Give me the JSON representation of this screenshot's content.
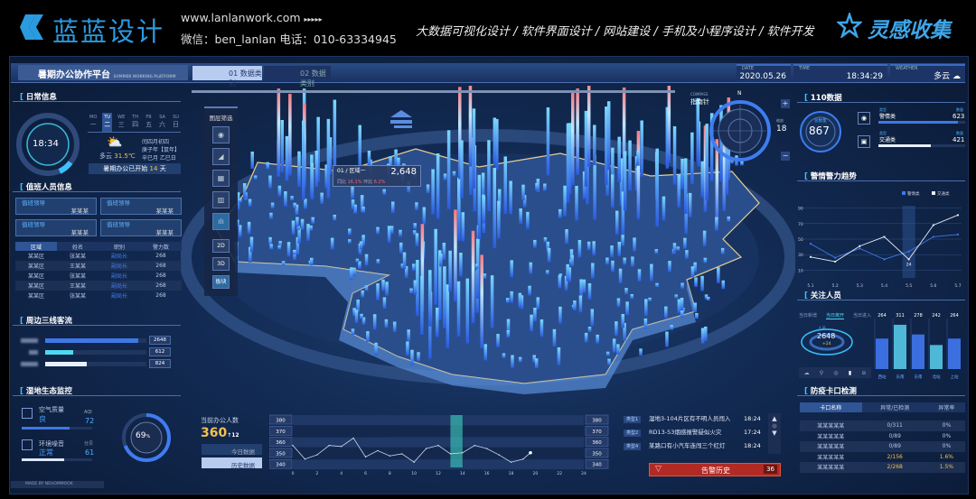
{
  "header": {
    "brand": "蓝蓝设计",
    "site": "www.lanlanwork.com",
    "arrows": "▸▸▸▸▸",
    "contact": "微信：ben_lanlan    电话：010-63334945",
    "services": "大数据可视化设计 / 软件界面设计 / 网站建设 / 手机及小程序设计 / 软件开发",
    "inspiration": "灵感收集"
  },
  "topbar": {
    "title": "暑期办公协作平台",
    "subtitle": "SUMMER WORKING PLATFORM",
    "tabs": [
      {
        "label": "01 数据类别",
        "active": true
      },
      {
        "label": "02 数据类别",
        "active": false
      }
    ],
    "date_label": "DATE",
    "date": "2020.05.26",
    "time_label": "TIME",
    "time": "18:34:29",
    "weather_label": "WEATHER",
    "weather": "多云"
  },
  "daily": {
    "title": "日常信息",
    "clock": "18:34",
    "days_en": [
      "MO",
      "TU",
      "WE",
      "TH",
      "FR",
      "SA",
      "SU"
    ],
    "days_cn": [
      "一",
      "二",
      "三",
      "四",
      "五",
      "六",
      "日"
    ],
    "selected_day": 1,
    "weather": "多云",
    "temp": "31.5℃",
    "lunar": [
      "闰四月初四",
      "庚子年【鼠年】",
      "辛巳月 乙巳日"
    ],
    "banner_prefix": "暑期办公已开始",
    "banner_days": "14",
    "banner_suffix": "天"
  },
  "duty": {
    "title": "值班人员信息",
    "cards": [
      {
        "role": "值班领导",
        "name": "某某某"
      },
      {
        "role": "值班领导",
        "name": "某某某"
      },
      {
        "role": "值班领导",
        "name": "某某某"
      },
      {
        "role": "值班领导",
        "name": "某某某"
      }
    ],
    "columns": [
      "区域",
      "姓名",
      "职别",
      "警力数"
    ],
    "rows": [
      [
        "某某区",
        "张某某",
        "副局长",
        "268"
      ],
      [
        "某某区",
        "王某某",
        "副局长",
        "268"
      ],
      [
        "某某区",
        "张某某",
        "副局长",
        "268"
      ],
      [
        "某某区",
        "王某某",
        "副局长",
        "268"
      ],
      [
        "某某区",
        "张某某",
        "副局长",
        "268"
      ]
    ]
  },
  "flow": {
    "title": "周边三线客流",
    "items": [
      {
        "value": "2648",
        "pct": 0.92,
        "color": "#3f78e6"
      },
      {
        "value": "612",
        "pct": 0.28,
        "color": "#4fd8f0"
      },
      {
        "value": "824",
        "pct": 0.41,
        "color": "#e8f0ff"
      }
    ]
  },
  "eco": {
    "title": "湿地生态监控",
    "air_label": "空气质量",
    "air_status": "良",
    "air_unit": "AQI",
    "air_value": "72",
    "air_pct": 0.68,
    "noise_label": "环境噪音",
    "noise_status": "正常",
    "noise_unit": "分贝",
    "noise_value": "61",
    "noise_pct": 0.6,
    "gauge": "69",
    "gauge_unit": "%",
    "gauge_pct": 0.69
  },
  "footer": {
    "credit": "MADE BY NEHOMMOOK"
  },
  "layers": {
    "title": "图层筛选",
    "icons": [
      "camera-icon",
      "signal-icon",
      "grid-icon",
      "building-icon",
      "chart-icon"
    ],
    "modes": [
      "2D",
      "3D",
      "板块"
    ]
  },
  "tooltip": {
    "region": "01 / 区域一",
    "value": "2,648",
    "yoy_label": "同比",
    "yoy": "16.1%",
    "mom_label": "环比",
    "mom": "6.2%"
  },
  "compass": {
    "label_en": "COMPASS",
    "label": "指南针",
    "north": "N",
    "zoom_label": "缩放",
    "zoom": "18",
    "plus": "+",
    "minus": "−"
  },
  "office": {
    "title": "当前办公人数",
    "value": "360",
    "delta": "↑12",
    "today": "今日数据",
    "history": "历史数据"
  },
  "events": {
    "items": [
      {
        "type": "类型1",
        "text": "湿地3-104片区有不明人员闯入",
        "time": "18:24"
      },
      {
        "type": "类型2",
        "text": "RD13-53烟感报警疑似火灾",
        "time": "17:24"
      },
      {
        "type": "类型4",
        "text": "某路口有小汽车连闯三个红灯",
        "time": "18:24"
      }
    ],
    "alarm_label": "告警历史",
    "alarm_count": "36"
  },
  "police110": {
    "title": "110数据",
    "total_label": "总数量",
    "total": "867",
    "items": [
      {
        "type_label": "类型",
        "name": "警情类",
        "count_label": "数量",
        "count": "623",
        "pct": 0.92
      },
      {
        "type_label": "类型",
        "name": "交通类",
        "count_label": "数量",
        "count": "421",
        "pct": 0.6
      }
    ]
  },
  "focus": {
    "title": "关注人员",
    "tabs": [
      "当日新增",
      "当日离开",
      "当日进入"
    ],
    "active_tab": 1,
    "gauge_label": "人员",
    "gauge_value": "2648",
    "gauge_delta": "+24"
  },
  "checkpoint": {
    "title": "防疫卡口检测",
    "columns": [
      "卡口名称",
      "异常/已检测",
      "异常率"
    ],
    "rows": [
      [
        "某某某某某",
        "0/311",
        "0%"
      ],
      [
        "某某某某某",
        "0/89",
        "0%"
      ],
      [
        "某某某某某",
        "0/89",
        "0%"
      ],
      [
        "某某某某某",
        "2/156",
        "1.6%"
      ],
      [
        "某某某某某",
        "2/268",
        "1.5%"
      ]
    ]
  },
  "chart_data": [
    {
      "type": "line",
      "title": "警情警力趋势",
      "categories": [
        "5.1",
        "5.2",
        "5.3",
        "5.4",
        "5.5",
        "5.6",
        "5.7"
      ],
      "ylim": [
        0,
        100
      ],
      "yticks": [
        "90",
        "70",
        "50",
        "30",
        "10"
      ],
      "legend": "top-right",
      "grid": true,
      "series": [
        {
          "name": "警情类",
          "color": "#3f78e6",
          "values": [
            44,
            26,
            38,
            24,
            34,
            53,
            56
          ]
        },
        {
          "name": "交通类",
          "color": "#e8eef8",
          "values": [
            27,
            21,
            41,
            53,
            24,
            68,
            81
          ]
        }
      ],
      "annotation": "24"
    },
    {
      "type": "bar",
      "title": "关注人员",
      "categories": [
        "西站",
        "东南",
        "东南",
        "北站",
        "上站"
      ],
      "values": [
        264,
        311,
        278,
        242,
        264
      ],
      "ylim": [
        160,
        320
      ],
      "colors": [
        "#3b6fe0",
        "#4fb8d8",
        "#3b6fe0",
        "#4fb8d8",
        "#3b6fe0"
      ]
    },
    {
      "type": "line",
      "title": "当前办公人数",
      "x": [
        0,
        1,
        2,
        3,
        4,
        5,
        6,
        7,
        8,
        9,
        10,
        11,
        12,
        13,
        14,
        15,
        16,
        17,
        18,
        19,
        19.6
      ],
      "values": [
        356,
        343,
        347,
        356,
        355,
        363,
        345,
        351,
        346,
        348,
        340,
        353,
        356,
        348,
        349,
        356,
        353,
        347,
        340,
        343,
        349
      ],
      "xticks": [
        "0",
        "2",
        "4",
        "6",
        "8",
        "10",
        "12",
        "14",
        "16",
        "18",
        "20",
        "22",
        "24"
      ],
      "ylabels": [
        "380",
        "370",
        "360",
        "350",
        "340"
      ],
      "ylim": [
        335,
        385
      ],
      "xlim": [
        0,
        24
      ],
      "highlight_hour": 13
    }
  ]
}
